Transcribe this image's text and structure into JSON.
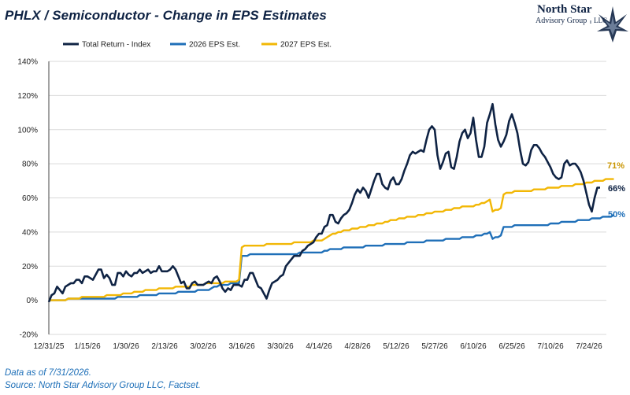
{
  "title": "PHLX / Semiconductor - Change in EPS Estimates",
  "logo": {
    "line1": "North Star",
    "line2": "Advisory Group",
    "line3": "LLC",
    "icon": "star-icon"
  },
  "footnotes": {
    "data_as_of": "Data as of 7/31/2026.",
    "source": "Source: North Star Advisory Group LLC, Factset."
  },
  "chart_data": {
    "type": "line",
    "title": "PHLX / Semiconductor - Change in EPS Estimates",
    "xlabel": "",
    "ylabel": "",
    "y_ticks": [
      "-20%",
      "0%",
      "20%",
      "40%",
      "60%",
      "80%",
      "100%",
      "120%",
      "140%"
    ],
    "ylim": [
      -20,
      140
    ],
    "x_ticks": [
      "12/31/25",
      "1/15/26",
      "1/30/26",
      "2/13/26",
      "3/02/26",
      "3/16/26",
      "3/30/26",
      "4/14/26",
      "4/28/26",
      "5/12/26",
      "5/27/26",
      "6/10/26",
      "6/25/26",
      "7/10/26",
      "7/24/26"
    ],
    "grid": "horizontal",
    "legend_position": "top-left",
    "colors": {
      "total_return": "#0f2344",
      "eps_2026": "#1f6fb8",
      "eps_2027": "#f2b705"
    },
    "end_labels": {
      "total_return": "66%",
      "eps_2026": "50%",
      "eps_2027": "71%"
    },
    "series": [
      {
        "name": "Total Return - Index",
        "key": "total_return",
        "values": [
          -1,
          3,
          4,
          8,
          6,
          4,
          8,
          9,
          10,
          10,
          12,
          12,
          10,
          14,
          14,
          13,
          12,
          15,
          18,
          18,
          13,
          15,
          13,
          9,
          9,
          16,
          16,
          14,
          17,
          15,
          14,
          16,
          16,
          18,
          16,
          17,
          18,
          16,
          17,
          17,
          20,
          17,
          17,
          17,
          18,
          20,
          18,
          14,
          10,
          11,
          7,
          7,
          10,
          11,
          9,
          9,
          9,
          10,
          11,
          10,
          13,
          14,
          11,
          7,
          5,
          7,
          6,
          9,
          9,
          9,
          8,
          12,
          12,
          16,
          16,
          12,
          8,
          7,
          4,
          1,
          6,
          10,
          11,
          12,
          14,
          15,
          20,
          22,
          24,
          26,
          26,
          26,
          29,
          30,
          32,
          33,
          34,
          37,
          39,
          39,
          43,
          44,
          50,
          50,
          46,
          45,
          48,
          50,
          51,
          53,
          57,
          62,
          65,
          63,
          66,
          64,
          60,
          65,
          70,
          74,
          74,
          68,
          66,
          65,
          70,
          72,
          68,
          68,
          71,
          76,
          80,
          85,
          87,
          86,
          87,
          88,
          87,
          94,
          100,
          102,
          100,
          85,
          77,
          81,
          86,
          87,
          78,
          77,
          84,
          93,
          98,
          100,
          95,
          98,
          107,
          94,
          84,
          84,
          90,
          104,
          109,
          115,
          103,
          94,
          90,
          93,
          97,
          105,
          109,
          104,
          98,
          88,
          80,
          79,
          81,
          88,
          91,
          91,
          89,
          86,
          84,
          81,
          78,
          74,
          72,
          71,
          72,
          80,
          82,
          79,
          80,
          80,
          78,
          75,
          70,
          63,
          56,
          52,
          60,
          66,
          66
        ]
      },
      {
        "name": "2026 EPS Est.",
        "key": "eps_2026",
        "values": [
          0,
          0,
          0,
          0,
          0,
          0,
          0,
          1,
          1,
          1,
          1,
          1,
          1,
          1,
          1,
          1,
          1,
          1,
          1,
          1,
          1,
          1,
          1,
          1,
          1,
          2,
          2,
          2,
          2,
          2,
          2,
          2,
          2,
          3,
          3,
          3,
          3,
          3,
          3,
          3,
          4,
          4,
          4,
          4,
          4,
          4,
          4,
          5,
          5,
          5,
          5,
          5,
          5,
          5,
          6,
          6,
          6,
          6,
          6,
          7,
          8,
          8,
          9,
          9,
          9,
          9,
          10,
          10,
          10,
          10,
          26,
          26,
          26,
          27,
          27,
          27,
          27,
          27,
          27,
          27,
          27,
          27,
          27,
          27,
          27,
          27,
          27,
          27,
          27,
          27,
          27,
          28,
          28,
          28,
          28,
          28,
          28,
          28,
          28,
          28,
          29,
          29,
          30,
          30,
          30,
          30,
          30,
          31,
          31,
          31,
          31,
          31,
          31,
          31,
          31,
          32,
          32,
          32,
          32,
          32,
          32,
          32,
          33,
          33,
          33,
          33,
          33,
          33,
          33,
          33,
          34,
          34,
          34,
          34,
          34,
          34,
          34,
          35,
          35,
          35,
          35,
          35,
          35,
          35,
          36,
          36,
          36,
          36,
          36,
          36,
          37,
          37,
          37,
          37,
          37,
          38,
          38,
          38,
          39,
          39,
          40,
          36,
          37,
          37,
          38,
          43,
          43,
          43,
          43,
          44,
          44,
          44,
          44,
          44,
          44,
          44,
          44,
          44,
          44,
          44,
          44,
          44,
          45,
          45,
          45,
          45,
          46,
          46,
          46,
          46,
          46,
          46,
          47,
          47,
          47,
          47,
          47,
          48,
          48,
          48,
          48,
          49,
          49,
          49,
          49,
          50
        ]
      },
      {
        "name": "2027 EPS Est.",
        "key": "eps_2027",
        "values": [
          0,
          0,
          0,
          0,
          0,
          0,
          0,
          1,
          1,
          1,
          1,
          1,
          2,
          2,
          2,
          2,
          2,
          2,
          2,
          2,
          2,
          3,
          3,
          3,
          3,
          3,
          3,
          4,
          4,
          4,
          4,
          5,
          5,
          5,
          5,
          6,
          6,
          6,
          6,
          6,
          7,
          7,
          7,
          7,
          7,
          7,
          8,
          8,
          8,
          8,
          8,
          8,
          9,
          9,
          9,
          9,
          9,
          10,
          10,
          10,
          10,
          10,
          10,
          10,
          11,
          11,
          11,
          11,
          11,
          12,
          31,
          32,
          32,
          32,
          32,
          32,
          32,
          32,
          32,
          33,
          33,
          33,
          33,
          33,
          33,
          33,
          33,
          33,
          33,
          34,
          34,
          34,
          34,
          34,
          34,
          34,
          35,
          35,
          35,
          35,
          36,
          37,
          38,
          39,
          39,
          40,
          40,
          41,
          41,
          41,
          42,
          42,
          42,
          43,
          43,
          43,
          44,
          44,
          44,
          45,
          45,
          45,
          46,
          46,
          47,
          47,
          47,
          48,
          48,
          48,
          49,
          49,
          49,
          49,
          50,
          50,
          50,
          51,
          51,
          51,
          52,
          52,
          52,
          52,
          53,
          53,
          53,
          54,
          54,
          54,
          55,
          55,
          55,
          55,
          55,
          56,
          56,
          57,
          57,
          58,
          59,
          52,
          53,
          53,
          54,
          62,
          63,
          63,
          63,
          64,
          64,
          64,
          64,
          64,
          64,
          64,
          65,
          65,
          65,
          65,
          65,
          66,
          66,
          66,
          66,
          66,
          67,
          67,
          67,
          67,
          67,
          68,
          68,
          68,
          68,
          69,
          69,
          69,
          70,
          70,
          70,
          70,
          71,
          71,
          71,
          71
        ]
      }
    ]
  }
}
